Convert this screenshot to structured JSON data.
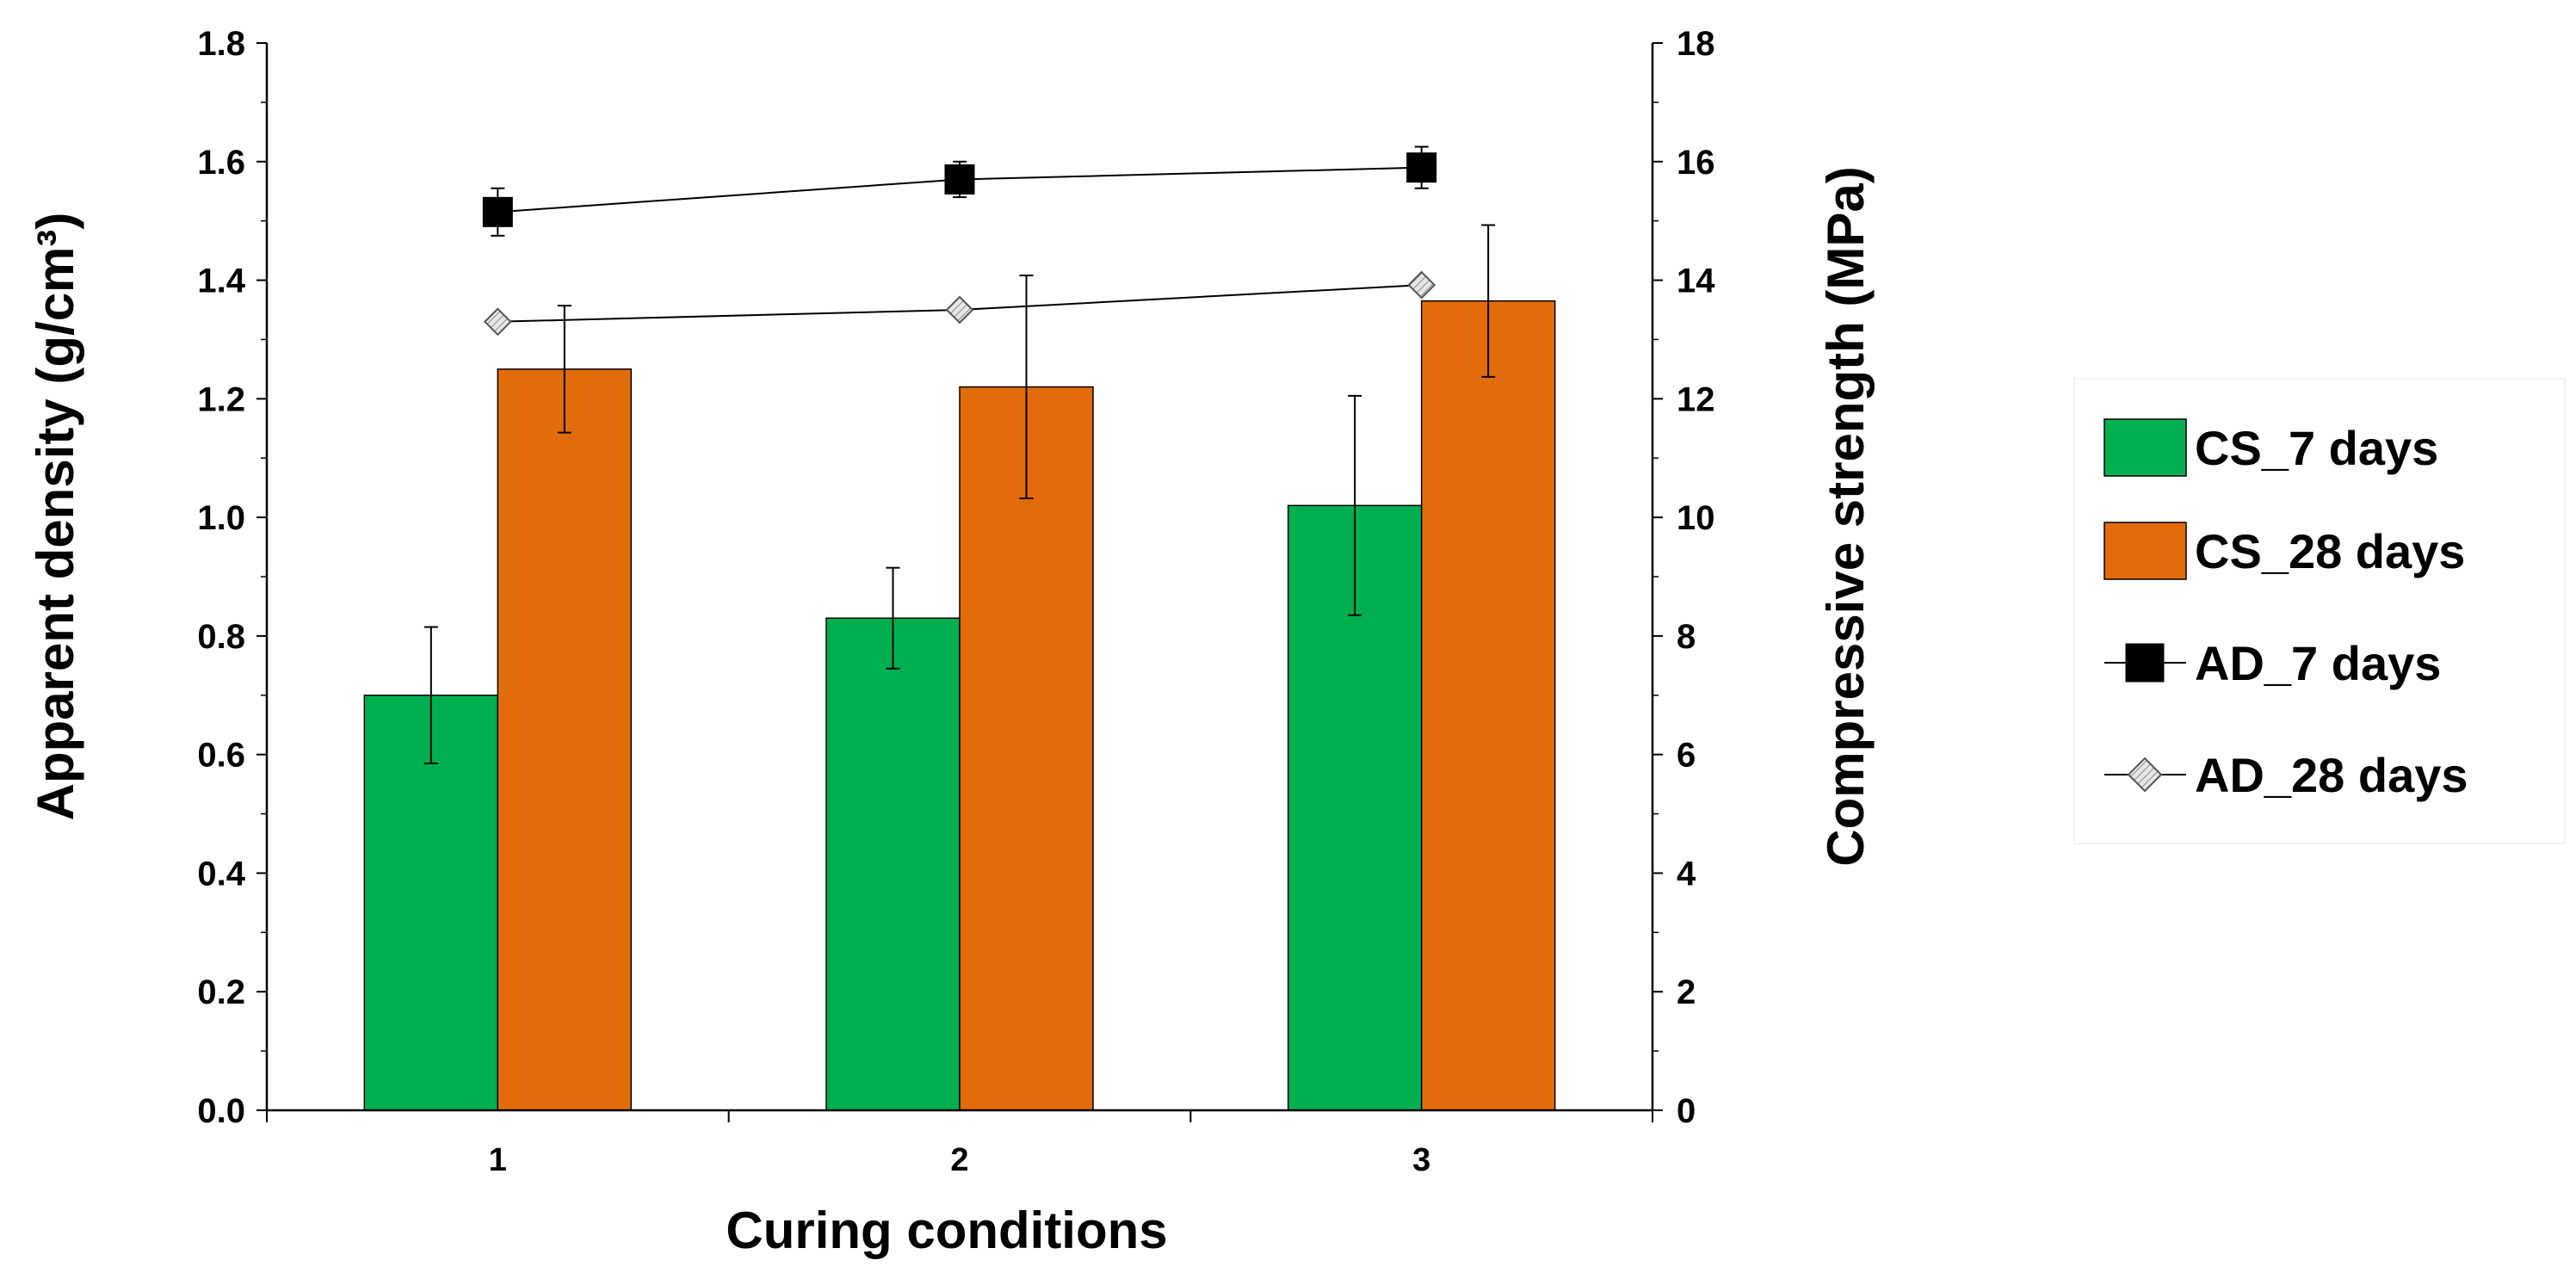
{
  "chart_data": {
    "type": "bar",
    "title": "",
    "xlabel": "Curing conditions",
    "ylabel": "Apparent density (g/cm³)",
    "y2label": "Compressive strength (MPa)",
    "categories": [
      "1",
      "2",
      "3"
    ],
    "ylim": [
      0,
      1.8
    ],
    "y_ticks": [
      "0.0",
      "0.2",
      "0.4",
      "0.6",
      "0.8",
      "1.0",
      "1.2",
      "1.4",
      "1.6",
      "1.8"
    ],
    "y2lim": [
      0,
      18
    ],
    "y2_ticks": [
      "0",
      "2",
      "4",
      "6",
      "8",
      "10",
      "12",
      "14",
      "16",
      "18"
    ],
    "legend_position": "right",
    "bar_series": [
      {
        "name": "CS_7 days",
        "axis": "right",
        "color": "#00b050",
        "values": [
          7.0,
          8.3,
          10.2
        ],
        "errors": [
          1.15,
          0.85,
          1.85
        ]
      },
      {
        "name": "CS_28 days",
        "axis": "right",
        "color": "#e36c0a",
        "values": [
          12.5,
          12.2,
          13.65
        ],
        "errors": [
          1.07,
          1.88,
          1.28
        ]
      }
    ],
    "line_series": [
      {
        "name": "AD_7 days",
        "axis": "left",
        "marker": "square",
        "color": "#000000",
        "values": [
          1.515,
          1.57,
          1.59
        ],
        "errors": [
          0.04,
          0.03,
          0.035
        ]
      },
      {
        "name": "AD_28 days",
        "axis": "left",
        "marker": "diamond",
        "color": "#c8c8c8",
        "values": [
          1.33,
          1.35,
          1.392
        ],
        "errors": [
          0.0,
          0.0,
          0.0
        ]
      }
    ]
  }
}
